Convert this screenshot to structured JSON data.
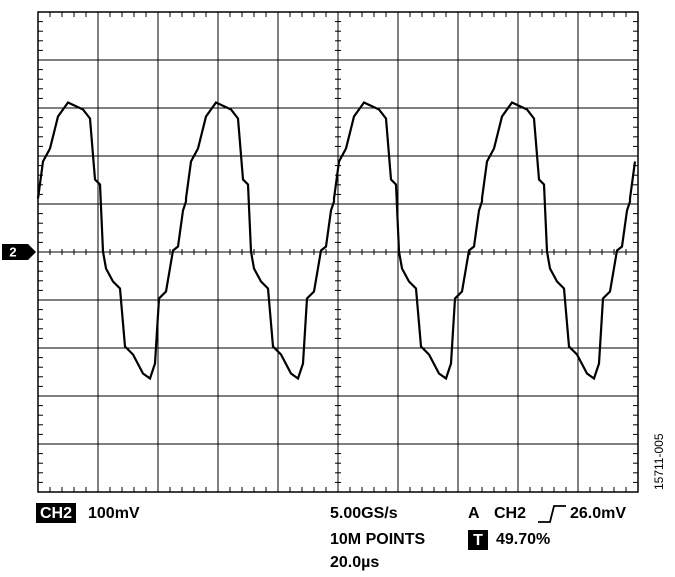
{
  "screen": {
    "channel_marker": "2",
    "bottom_left": {
      "channel": "CH2",
      "scale": "100mV"
    },
    "bottom_center": {
      "sample_rate": "5.00GS/s",
      "record_length": "10M POINTS",
      "time_scale": "20.0µs"
    },
    "trigger": {
      "mode": "A",
      "source": "CH2",
      "level": "26.0mV",
      "position_badge": "T",
      "position": "49.70%"
    },
    "figure_id": "15711-005"
  }
}
